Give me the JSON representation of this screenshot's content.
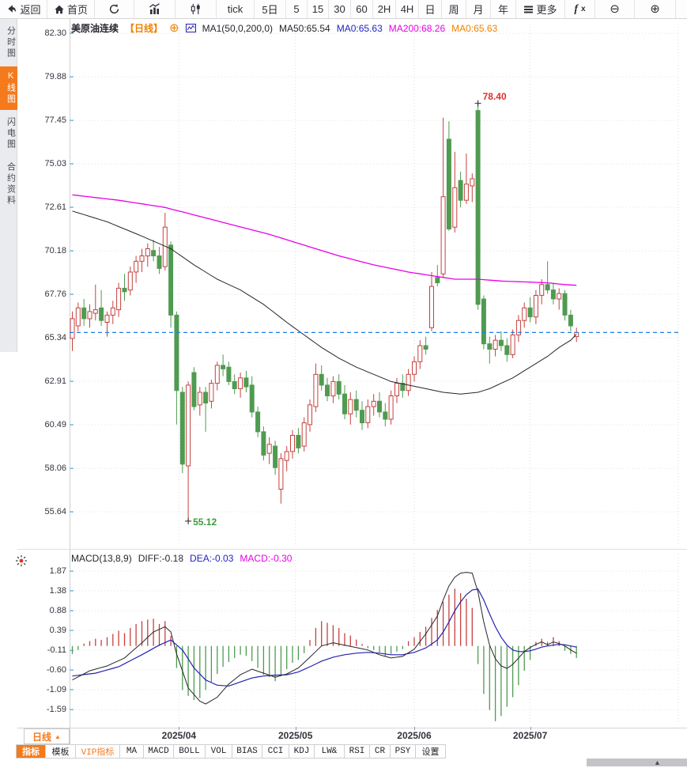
{
  "toolbar": {
    "items": [
      {
        "id": "back",
        "label": "返回",
        "icon": "back-arrow"
      },
      {
        "id": "home",
        "label": "首页",
        "icon": "home"
      },
      {
        "id": "refresh",
        "icon": "refresh"
      },
      {
        "id": "chart-bars",
        "icon": "bar-chart"
      },
      {
        "id": "chart-candles",
        "icon": "candlestick"
      },
      {
        "id": "tick",
        "label": "tick"
      },
      {
        "id": "5d",
        "label": "5日"
      },
      {
        "id": "m5",
        "label": "5"
      },
      {
        "id": "m15",
        "label": "15"
      },
      {
        "id": "m30",
        "label": "30"
      },
      {
        "id": "m60",
        "label": "60"
      },
      {
        "id": "h2",
        "label": "2H"
      },
      {
        "id": "h4",
        "label": "4H"
      },
      {
        "id": "day",
        "label": "日"
      },
      {
        "id": "week",
        "label": "周"
      },
      {
        "id": "month",
        "label": "月"
      },
      {
        "id": "year",
        "label": "年"
      },
      {
        "id": "more",
        "label": "更多",
        "icon": "menu"
      },
      {
        "id": "fx",
        "label": "fx",
        "icon": "fx"
      },
      {
        "id": "zoom-out",
        "icon": "zoom-out"
      },
      {
        "id": "zoom-in",
        "icon": "zoom-in"
      }
    ]
  },
  "sidebar": {
    "items": [
      {
        "label": "分时图",
        "active": false
      },
      {
        "label": "K线图",
        "active": true
      },
      {
        "label": "闪电图",
        "active": false
      },
      {
        "label": "合约资料",
        "active": false
      }
    ]
  },
  "chart_header": {
    "symbol": "美原油连续",
    "period_tag": "【日线】",
    "ma_settings": "MA1(50,0,200,0)",
    "ma50": "MA50:65.54",
    "ma0_blue": "MA0:65.63",
    "ma200": "MA200:68.26",
    "ma0_orange": "MA0:65.63"
  },
  "macd_header": {
    "title": "MACD(13,8,9)",
    "diff": "DIFF:-0.18",
    "dea": "DEA:-0.03",
    "macd": "MACD:-0.30"
  },
  "bottom": {
    "period_label": "日线",
    "tabs": [
      {
        "label": "指标",
        "style": "active"
      },
      {
        "label": "模板",
        "style": "normal"
      },
      {
        "label": "VIP指标",
        "style": "vip"
      },
      {
        "label": "MA",
        "style": "normal"
      },
      {
        "label": "MACD",
        "style": "normal"
      },
      {
        "label": "BOLL",
        "style": "normal"
      },
      {
        "label": "VOL",
        "style": "normal"
      },
      {
        "label": "BIAS",
        "style": "normal"
      },
      {
        "label": "CCI",
        "style": "normal"
      },
      {
        "label": "KDJ",
        "style": "normal"
      },
      {
        "label": "LW&",
        "style": "normal"
      },
      {
        "label": "RSI",
        "style": "normal"
      },
      {
        "label": "CR",
        "style": "normal"
      },
      {
        "label": "PSY",
        "style": "normal"
      },
      {
        "label": "设置",
        "style": "normal"
      }
    ]
  },
  "icons": {
    "zoom_out": "⊖",
    "zoom_in": "⊕",
    "add": "⊕",
    "caret_up": "▲"
  },
  "colors": {
    "accent": "#f57a1c",
    "up": "#c5413f",
    "down": "#4f9b51",
    "ma50": "#26262a",
    "ma200": "#e800e8",
    "dea": "#2323b0",
    "diff": "#26262a",
    "price_line": "#1e7fe0",
    "high_label": "#e03030",
    "low_label": "#3a9a3a",
    "grid": "#e4e4e4",
    "axis_tick": "#6ab6da"
  },
  "chart_data": {
    "type": "candlestick",
    "title": "美原油连续 日线",
    "price_axis_ticks": [
      "82.30",
      "79.88",
      "77.45",
      "75.03",
      "72.61",
      "70.18",
      "67.76",
      "65.34",
      "62.91",
      "60.49",
      "58.06",
      "55.64"
    ],
    "macd_axis_ticks": [
      "1.87",
      "1.38",
      "0.88",
      "0.39",
      "-0.11",
      "-0.60",
      "-1.09",
      "-1.59"
    ],
    "months": [
      {
        "label": "2025/04",
        "index": 18.4
      },
      {
        "label": "2025/05",
        "index": 38.5
      },
      {
        "label": "2025/06",
        "index": 59
      },
      {
        "label": "2025/07",
        "index": 79
      }
    ],
    "last_price": 65.63,
    "annotations": {
      "high": {
        "index": 70,
        "price": 78.4,
        "label": "78.40"
      },
      "low": {
        "index": 20,
        "price": 55.12,
        "label": "55.12"
      }
    },
    "candles": [
      [
        65.3,
        66.8,
        64.6,
        66.4
      ],
      [
        66.0,
        67.3,
        65.7,
        67.0
      ],
      [
        67.0,
        67.5,
        66.0,
        66.4
      ],
      [
        66.4,
        67.2,
        65.9,
        66.8
      ],
      [
        66.7,
        68.3,
        66.3,
        66.9
      ],
      [
        67.0,
        68.0,
        66.0,
        66.3
      ],
      [
        66.2,
        66.8,
        65.4,
        66.6
      ],
      [
        66.6,
        67.4,
        66.1,
        67.0
      ],
      [
        66.9,
        68.4,
        66.5,
        68.1
      ],
      [
        68.1,
        68.9,
        67.4,
        67.9
      ],
      [
        68.0,
        69.3,
        67.7,
        69.0
      ],
      [
        69.0,
        69.9,
        68.4,
        69.6
      ],
      [
        69.6,
        70.3,
        69.0,
        69.9
      ],
      [
        69.9,
        70.6,
        69.3,
        70.3
      ],
      [
        70.2,
        70.8,
        69.6,
        69.9
      ],
      [
        69.9,
        70.4,
        68.9,
        69.2
      ],
      [
        69.3,
        72.3,
        69.1,
        71.5
      ],
      [
        70.5,
        70.7,
        65.9,
        66.6
      ],
      [
        66.6,
        66.8,
        60.5,
        62.4
      ],
      [
        62.3,
        62.6,
        57.8,
        58.3
      ],
      [
        58.2,
        62.9,
        55.12,
        62.7
      ],
      [
        63.4,
        63.7,
        61.3,
        61.5
      ],
      [
        61.6,
        62.6,
        61.0,
        62.3
      ],
      [
        62.3,
        62.6,
        60.1,
        61.7
      ],
      [
        61.8,
        63.0,
        61.4,
        62.8
      ],
      [
        62.8,
        64.0,
        62.4,
        63.8
      ],
      [
        63.8,
        64.4,
        63.2,
        63.6
      ],
      [
        63.7,
        64.0,
        62.7,
        62.9
      ],
      [
        62.9,
        63.3,
        62.2,
        62.5
      ],
      [
        62.5,
        63.4,
        62.0,
        63.1
      ],
      [
        63.1,
        63.5,
        62.3,
        62.6
      ],
      [
        62.7,
        63.2,
        60.9,
        61.2
      ],
      [
        61.2,
        61.5,
        59.8,
        60.1
      ],
      [
        60.1,
        60.4,
        58.5,
        58.8
      ],
      [
        58.9,
        59.8,
        58.3,
        59.4
      ],
      [
        59.3,
        59.6,
        57.7,
        58.1
      ],
      [
        56.9,
        58.9,
        56.1,
        58.6
      ],
      [
        58.5,
        59.3,
        57.9,
        59.0
      ],
      [
        59.0,
        60.2,
        58.6,
        59.9
      ],
      [
        59.9,
        60.3,
        58.9,
        59.2
      ],
      [
        59.3,
        60.9,
        59.0,
        60.6
      ],
      [
        60.5,
        61.9,
        60.1,
        61.6
      ],
      [
        61.5,
        63.9,
        61.2,
        63.3
      ],
      [
        63.3,
        63.8,
        62.4,
        62.7
      ],
      [
        62.7,
        63.1,
        61.8,
        62.1
      ],
      [
        62.1,
        63.2,
        61.7,
        62.9
      ],
      [
        62.9,
        63.3,
        61.9,
        62.2
      ],
      [
        62.2,
        62.7,
        60.8,
        61.1
      ],
      [
        61.1,
        62.3,
        60.5,
        61.9
      ],
      [
        61.9,
        62.4,
        60.9,
        61.3
      ],
      [
        61.3,
        61.8,
        60.2,
        60.6
      ],
      [
        60.6,
        61.9,
        60.3,
        61.5
      ],
      [
        61.5,
        62.2,
        61.0,
        61.8
      ],
      [
        61.8,
        62.3,
        60.9,
        61.2
      ],
      [
        61.2,
        61.7,
        60.4,
        60.8
      ],
      [
        60.8,
        62.4,
        60.5,
        62.1
      ],
      [
        62.1,
        63.1,
        61.7,
        62.8
      ],
      [
        62.8,
        63.3,
        62.0,
        62.4
      ],
      [
        62.4,
        63.6,
        62.1,
        63.3
      ],
      [
        63.3,
        64.3,
        62.9,
        64.0
      ],
      [
        64.0,
        65.2,
        63.6,
        64.9
      ],
      [
        64.9,
        65.4,
        64.4,
        64.7
      ],
      [
        65.9,
        69.0,
        65.7,
        68.2
      ],
      [
        68.7,
        69.4,
        68.2,
        68.4
      ],
      [
        68.9,
        77.6,
        68.7,
        73.2
      ],
      [
        76.4,
        77.4,
        71.3,
        71.4
      ],
      [
        71.5,
        75.7,
        71.2,
        73.7
      ],
      [
        74.1,
        74.6,
        72.6,
        73.0
      ],
      [
        73.0,
        75.6,
        72.8,
        73.9
      ],
      [
        73.8,
        74.5,
        72.9,
        74.2
      ],
      [
        78.0,
        78.4,
        66.9,
        67.2
      ],
      [
        67.5,
        67.7,
        64.7,
        65.0
      ],
      [
        65.0,
        65.4,
        63.9,
        64.7
      ],
      [
        64.7,
        65.5,
        64.3,
        65.2
      ],
      [
        65.2,
        65.7,
        64.6,
        64.9
      ],
      [
        64.9,
        65.3,
        64.0,
        64.4
      ],
      [
        64.4,
        65.8,
        64.2,
        65.5
      ],
      [
        65.5,
        66.6,
        65.1,
        66.3
      ],
      [
        66.3,
        67.3,
        65.9,
        67.0
      ],
      [
        67.0,
        67.6,
        66.2,
        66.5
      ],
      [
        66.5,
        68.0,
        66.1,
        67.7
      ],
      [
        67.7,
        68.6,
        67.2,
        68.3
      ],
      [
        68.3,
        69.6,
        67.8,
        68.0
      ],
      [
        68.0,
        68.4,
        67.2,
        67.5
      ],
      [
        67.5,
        68.1,
        66.9,
        67.8
      ],
      [
        67.8,
        68.0,
        66.3,
        66.6
      ],
      [
        66.6,
        66.9,
        65.7,
        66.0
      ],
      [
        65.4,
        65.9,
        65.1,
        65.63
      ]
    ],
    "ma50_anchors": [
      [
        0,
        72.4
      ],
      [
        6,
        71.8
      ],
      [
        12,
        71.0
      ],
      [
        17,
        70.3
      ],
      [
        21,
        69.4
      ],
      [
        25,
        68.6
      ],
      [
        29,
        68.0
      ],
      [
        33,
        67.2
      ],
      [
        37,
        66.2
      ],
      [
        40,
        65.5
      ],
      [
        43,
        64.8
      ],
      [
        46,
        64.2
      ],
      [
        49,
        63.7
      ],
      [
        52,
        63.3
      ],
      [
        55,
        62.9
      ],
      [
        58,
        62.7
      ],
      [
        61,
        62.5
      ],
      [
        64,
        62.3
      ],
      [
        67,
        62.2
      ],
      [
        70,
        62.3
      ],
      [
        72,
        62.5
      ],
      [
        74,
        62.8
      ],
      [
        76,
        63.1
      ],
      [
        78,
        63.5
      ],
      [
        80,
        63.9
      ],
      [
        82,
        64.3
      ],
      [
        84,
        64.8
      ],
      [
        86,
        65.2
      ],
      [
        87,
        65.54
      ]
    ],
    "ma200_anchors": [
      [
        0,
        73.3
      ],
      [
        8,
        73.0
      ],
      [
        16,
        72.6
      ],
      [
        22,
        72.1
      ],
      [
        28,
        71.6
      ],
      [
        34,
        71.1
      ],
      [
        40,
        70.5
      ],
      [
        46,
        69.9
      ],
      [
        52,
        69.4
      ],
      [
        58,
        69.0
      ],
      [
        62,
        68.8
      ],
      [
        66,
        68.6
      ],
      [
        70,
        68.6
      ],
      [
        74,
        68.5
      ],
      [
        78,
        68.45
      ],
      [
        82,
        68.4
      ],
      [
        85,
        68.3
      ],
      [
        87,
        68.26
      ]
    ],
    "macd": {
      "hist": [
        -0.2,
        -0.1,
        0.06,
        0.12,
        0.18,
        0.15,
        0.22,
        0.3,
        0.38,
        0.32,
        0.45,
        0.55,
        0.62,
        0.66,
        0.68,
        0.55,
        0.62,
        0.25,
        -0.55,
        -1.1,
        -1.25,
        -1.35,
        -1.3,
        -1.1,
        -0.9,
        -0.7,
        -0.52,
        -0.4,
        -0.3,
        -0.22,
        -0.25,
        -0.38,
        -0.55,
        -0.72,
        -0.78,
        -0.88,
        -0.75,
        -0.58,
        -0.42,
        -0.35,
        -0.18,
        0.15,
        0.45,
        0.62,
        0.58,
        0.52,
        0.45,
        0.32,
        0.26,
        0.16,
        0.05,
        -0.06,
        -0.1,
        -0.16,
        -0.26,
        -0.2,
        -0.14,
        -0.08,
        0.12,
        0.22,
        0.35,
        0.48,
        0.7,
        0.9,
        1.1,
        1.28,
        1.43,
        1.32,
        1.18,
        0.95,
        -0.45,
        -1.2,
        -1.6,
        -1.88,
        -1.75,
        -1.52,
        -1.28,
        -0.98,
        -0.62,
        -0.35,
        0.1,
        0.18,
        0.1,
        0.22,
        0.12,
        -0.12,
        -0.2,
        -0.3
      ],
      "diff_anchors": [
        [
          0,
          -0.85
        ],
        [
          3,
          -0.62
        ],
        [
          6,
          -0.5
        ],
        [
          9,
          -0.3
        ],
        [
          12,
          0.08
        ],
        [
          14,
          0.35
        ],
        [
          16,
          0.48
        ],
        [
          17,
          0.35
        ],
        [
          18,
          -0.2
        ],
        [
          20,
          -1.05
        ],
        [
          22,
          -1.38
        ],
        [
          23,
          -1.45
        ],
        [
          25,
          -1.28
        ],
        [
          27,
          -0.95
        ],
        [
          29,
          -0.72
        ],
        [
          31,
          -0.58
        ],
        [
          33,
          -0.68
        ],
        [
          35,
          -0.78
        ],
        [
          37,
          -0.7
        ],
        [
          39,
          -0.55
        ],
        [
          41,
          -0.28
        ],
        [
          43,
          0.0
        ],
        [
          45,
          0.08
        ],
        [
          47,
          0.02
        ],
        [
          49,
          -0.04
        ],
        [
          51,
          -0.1
        ],
        [
          53,
          -0.22
        ],
        [
          55,
          -0.3
        ],
        [
          57,
          -0.26
        ],
        [
          59,
          -0.08
        ],
        [
          61,
          0.3
        ],
        [
          63,
          0.75
        ],
        [
          64,
          1.15
        ],
        [
          65,
          1.5
        ],
        [
          66,
          1.72
        ],
        [
          67,
          1.82
        ],
        [
          68,
          1.84
        ],
        [
          69,
          1.82
        ],
        [
          70,
          1.35
        ],
        [
          71,
          0.6
        ],
        [
          72,
          0.02
        ],
        [
          73,
          -0.32
        ],
        [
          74,
          -0.5
        ],
        [
          75,
          -0.56
        ],
        [
          76,
          -0.46
        ],
        [
          77,
          -0.3
        ],
        [
          78,
          -0.14
        ],
        [
          79,
          -0.04
        ],
        [
          80,
          0.04
        ],
        [
          81,
          0.1
        ],
        [
          82,
          0.03
        ],
        [
          83,
          0.1
        ],
        [
          84,
          0.06
        ],
        [
          85,
          0.0
        ],
        [
          86,
          -0.1
        ],
        [
          87,
          -0.18
        ]
      ],
      "dea_anchors": [
        [
          0,
          -0.75
        ],
        [
          4,
          -0.68
        ],
        [
          8,
          -0.52
        ],
        [
          12,
          -0.22
        ],
        [
          15,
          0.02
        ],
        [
          17,
          0.15
        ],
        [
          19,
          -0.1
        ],
        [
          21,
          -0.55
        ],
        [
          23,
          -0.85
        ],
        [
          25,
          -0.98
        ],
        [
          27,
          -1.0
        ],
        [
          29,
          -0.9
        ],
        [
          31,
          -0.8
        ],
        [
          33,
          -0.75
        ],
        [
          35,
          -0.73
        ],
        [
          37,
          -0.72
        ],
        [
          39,
          -0.65
        ],
        [
          41,
          -0.52
        ],
        [
          43,
          -0.38
        ],
        [
          45,
          -0.28
        ],
        [
          47,
          -0.22
        ],
        [
          49,
          -0.18
        ],
        [
          51,
          -0.16
        ],
        [
          53,
          -0.18
        ],
        [
          55,
          -0.22
        ],
        [
          57,
          -0.22
        ],
        [
          59,
          -0.16
        ],
        [
          61,
          -0.05
        ],
        [
          63,
          0.15
        ],
        [
          64,
          0.35
        ],
        [
          65,
          0.6
        ],
        [
          66,
          0.88
        ],
        [
          67,
          1.1
        ],
        [
          68,
          1.28
        ],
        [
          69,
          1.4
        ],
        [
          70,
          1.42
        ],
        [
          71,
          1.15
        ],
        [
          72,
          0.8
        ],
        [
          73,
          0.48
        ],
        [
          74,
          0.22
        ],
        [
          75,
          0.02
        ],
        [
          76,
          -0.1
        ],
        [
          77,
          -0.14
        ],
        [
          78,
          -0.14
        ],
        [
          79,
          -0.12
        ],
        [
          80,
          -0.08
        ],
        [
          81,
          -0.03
        ],
        [
          82,
          0.0
        ],
        [
          83,
          0.02
        ],
        [
          84,
          0.04
        ],
        [
          85,
          0.03
        ],
        [
          86,
          0.0
        ],
        [
          87,
          -0.03
        ]
      ]
    }
  }
}
